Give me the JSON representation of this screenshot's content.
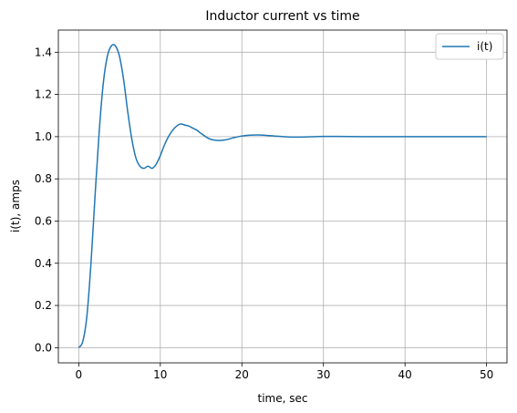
{
  "chart_data": {
    "type": "line",
    "title": "Inductor current vs time",
    "xlabel": "time, sec",
    "ylabel": "i(t), amps",
    "xlim": [
      -2.5,
      52.5
    ],
    "ylim": [
      -0.072,
      1.505
    ],
    "grid": true,
    "legend": "top-right",
    "xticks": [
      0,
      10,
      20,
      30,
      40,
      50
    ],
    "xtick_labels": [
      "0",
      "10",
      "20",
      "30",
      "40",
      "50"
    ],
    "yticks": [
      0.0,
      0.2,
      0.4,
      0.6,
      0.8,
      1.0,
      1.2,
      1.4
    ],
    "ytick_labels": [
      "0.0",
      "0.2",
      "0.4",
      "0.6",
      "0.8",
      "1.0",
      "1.2",
      "1.4"
    ],
    "series": [
      {
        "name": "i(t)",
        "color": "#1f77b4",
        "x": [
          0,
          0.5,
          1,
          1.5,
          2,
          2.5,
          3,
          3.5,
          4,
          4.5,
          5,
          5.5,
          6,
          6.5,
          7,
          7.5,
          8,
          8.5,
          9,
          9.5,
          10,
          10.5,
          11,
          11.5,
          12,
          12.5,
          13,
          13.5,
          14,
          14.5,
          15,
          16,
          17,
          18,
          19,
          20,
          21,
          22,
          23,
          24,
          25,
          26,
          27,
          28,
          29,
          30,
          32,
          35,
          40,
          45,
          50
        ],
        "y": [
          0.0,
          0.03,
          0.15,
          0.4,
          0.72,
          1.02,
          1.25,
          1.38,
          1.43,
          1.43,
          1.38,
          1.27,
          1.12,
          0.99,
          0.9,
          0.86,
          0.85,
          0.86,
          0.85,
          0.87,
          0.91,
          0.96,
          1.0,
          1.03,
          1.05,
          1.06,
          1.055,
          1.05,
          1.04,
          1.03,
          1.015,
          0.99,
          0.982,
          0.985,
          0.995,
          1.003,
          1.007,
          1.008,
          1.006,
          1.003,
          1.0,
          0.998,
          0.998,
          0.999,
          1.0,
          1.001,
          1.001,
          1.0,
          1.0,
          1.0,
          1.0
        ]
      }
    ]
  }
}
